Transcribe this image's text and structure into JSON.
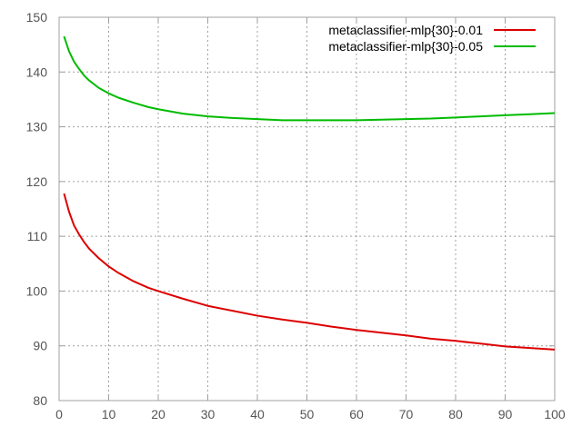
{
  "chart_data": {
    "type": "line",
    "title": "",
    "xlabel": "",
    "ylabel": "",
    "xlim": [
      0,
      100
    ],
    "ylim": [
      80,
      150
    ],
    "xticks": [
      "0",
      "10",
      "20",
      "30",
      "40",
      "50",
      "60",
      "70",
      "80",
      "90",
      "100"
    ],
    "yticks": [
      "80",
      "90",
      "100",
      "110",
      "120",
      "130",
      "140",
      "150"
    ],
    "grid": true,
    "legend_position": "top-right",
    "series": [
      {
        "name": "metaclassifier-mlp{30}-0.01",
        "color": "#dd0000",
        "x": [
          1,
          2,
          3,
          4,
          5,
          6,
          8,
          10,
          12,
          15,
          18,
          20,
          25,
          30,
          35,
          40,
          45,
          50,
          55,
          60,
          65,
          70,
          75,
          80,
          85,
          90,
          95,
          100
        ],
        "y": [
          117.8,
          114.5,
          112.0,
          110.4,
          109.0,
          107.8,
          106.0,
          104.5,
          103.3,
          101.8,
          100.6,
          100.0,
          98.6,
          97.3,
          96.4,
          95.5,
          94.8,
          94.2,
          93.5,
          92.9,
          92.4,
          91.9,
          91.3,
          90.9,
          90.4,
          89.9,
          89.6,
          89.3
        ]
      },
      {
        "name": "metaclassifier-mlp{30}-0.05",
        "color": "#00bb00",
        "x": [
          1,
          2,
          3,
          4,
          5,
          6,
          8,
          10,
          12,
          15,
          18,
          20,
          25,
          30,
          35,
          40,
          45,
          50,
          55,
          60,
          65,
          70,
          75,
          80,
          85,
          90,
          95,
          100
        ],
        "y": [
          146.5,
          143.8,
          141.9,
          140.6,
          139.4,
          138.5,
          137.1,
          136.1,
          135.3,
          134.4,
          133.6,
          133.2,
          132.4,
          131.9,
          131.6,
          131.4,
          131.2,
          131.2,
          131.2,
          131.2,
          131.3,
          131.4,
          131.5,
          131.7,
          131.9,
          132.1,
          132.3,
          132.5
        ]
      }
    ]
  }
}
